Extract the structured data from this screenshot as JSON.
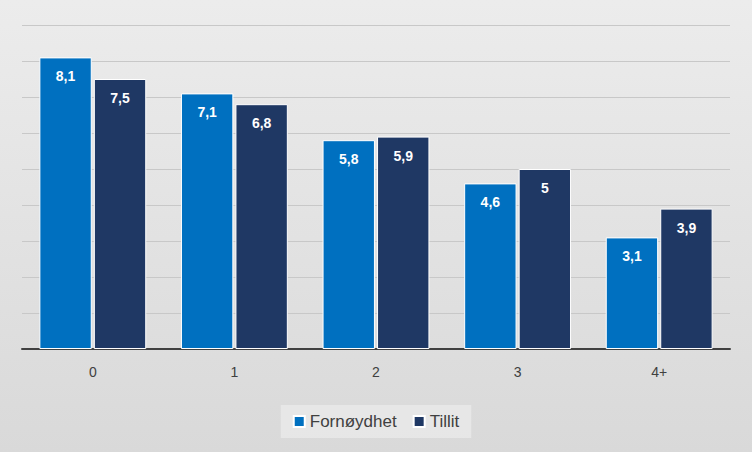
{
  "chart_data": {
    "type": "bar",
    "categories": [
      "0",
      "1",
      "2",
      "3",
      "4+"
    ],
    "series": [
      {
        "name": "Fornøydhet",
        "color": "#0070c0",
        "values": [
          8.1,
          7.1,
          5.8,
          4.6,
          3.1
        ],
        "value_labels": [
          "8,1",
          "7,1",
          "5,8",
          "4,6",
          "3,1"
        ]
      },
      {
        "name": "Tillit",
        "color": "#1f3864",
        "values": [
          7.5,
          6.8,
          5.9,
          5,
          3.9
        ],
        "value_labels": [
          "7,5",
          "6,8",
          "5,9",
          "5",
          "3,9"
        ]
      }
    ],
    "ylim": [
      0,
      9
    ],
    "yticks": [
      0,
      1,
      2,
      3,
      4,
      5,
      6,
      7,
      8,
      9
    ],
    "grid": true,
    "legend": "bottom",
    "data_labels": true,
    "tick_labels": "x"
  }
}
